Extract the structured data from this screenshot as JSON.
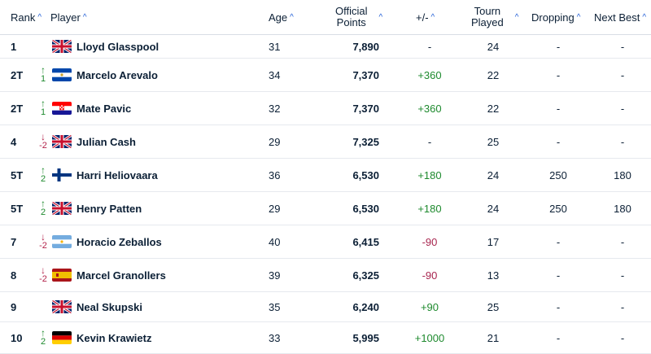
{
  "headers": {
    "rank": "Rank",
    "player": "Player",
    "age": "Age",
    "points_line1": "Official",
    "points_line2": "Points",
    "plusminus": "+/-",
    "tourn_line1": "Tourn",
    "tourn_line2": "Played",
    "dropping": "Dropping",
    "nextbest": "Next Best",
    "sort_icon": "^"
  },
  "colors": {
    "up": "#1e8a2e",
    "down": "#b3234a",
    "sort": "#1f5dd6"
  },
  "rows": [
    {
      "rank": "1",
      "move": "",
      "move_dir": "none",
      "flag": "gb",
      "flag_icon": "flag-gb-icon",
      "player": "Lloyd Glasspool",
      "age": "31",
      "points": "7,890",
      "pm": "-",
      "pm_sign": "none",
      "tourn": "24",
      "dropping": "-",
      "next_best": "-"
    },
    {
      "rank": "2T",
      "move": "1",
      "move_dir": "up",
      "flag": "sv",
      "flag_icon": "flag-sv-icon",
      "player": "Marcelo Arevalo",
      "age": "34",
      "points": "7,370",
      "pm": "+360",
      "pm_sign": "pos",
      "tourn": "22",
      "dropping": "-",
      "next_best": "-"
    },
    {
      "rank": "2T",
      "move": "1",
      "move_dir": "up",
      "flag": "hr",
      "flag_icon": "flag-hr-icon",
      "player": "Mate Pavic",
      "age": "32",
      "points": "7,370",
      "pm": "+360",
      "pm_sign": "pos",
      "tourn": "22",
      "dropping": "-",
      "next_best": "-"
    },
    {
      "rank": "4",
      "move": "-2",
      "move_dir": "down",
      "flag": "gb",
      "flag_icon": "flag-gb-icon",
      "player": "Julian Cash",
      "age": "29",
      "points": "7,325",
      "pm": "-",
      "pm_sign": "none",
      "tourn": "25",
      "dropping": "-",
      "next_best": "-"
    },
    {
      "rank": "5T",
      "move": "2",
      "move_dir": "up",
      "flag": "fi",
      "flag_icon": "flag-fi-icon",
      "player": "Harri Heliovaara",
      "age": "36",
      "points": "6,530",
      "pm": "+180",
      "pm_sign": "pos",
      "tourn": "24",
      "dropping": "250",
      "next_best": "180"
    },
    {
      "rank": "5T",
      "move": "2",
      "move_dir": "up",
      "flag": "gb",
      "flag_icon": "flag-gb-icon",
      "player": "Henry Patten",
      "age": "29",
      "points": "6,530",
      "pm": "+180",
      "pm_sign": "pos",
      "tourn": "24",
      "dropping": "250",
      "next_best": "180"
    },
    {
      "rank": "7",
      "move": "-2",
      "move_dir": "down",
      "flag": "ar",
      "flag_icon": "flag-ar-icon",
      "player": "Horacio Zeballos",
      "age": "40",
      "points": "6,415",
      "pm": "-90",
      "pm_sign": "neg",
      "tourn": "17",
      "dropping": "-",
      "next_best": "-"
    },
    {
      "rank": "8",
      "move": "-2",
      "move_dir": "down",
      "flag": "es",
      "flag_icon": "flag-es-icon",
      "player": "Marcel Granollers",
      "age": "39",
      "points": "6,325",
      "pm": "-90",
      "pm_sign": "neg",
      "tourn": "13",
      "dropping": "-",
      "next_best": "-"
    },
    {
      "rank": "9",
      "move": "",
      "move_dir": "none",
      "flag": "gb",
      "flag_icon": "flag-gb-icon",
      "player": "Neal Skupski",
      "age": "35",
      "points": "6,240",
      "pm": "+90",
      "pm_sign": "pos",
      "tourn": "25",
      "dropping": "-",
      "next_best": "-"
    },
    {
      "rank": "10",
      "move": "2",
      "move_dir": "up",
      "flag": "de",
      "flag_icon": "flag-de-icon",
      "player": "Kevin Krawietz",
      "age": "33",
      "points": "5,995",
      "pm": "+1000",
      "pm_sign": "pos",
      "tourn": "21",
      "dropping": "-",
      "next_best": "-"
    }
  ]
}
